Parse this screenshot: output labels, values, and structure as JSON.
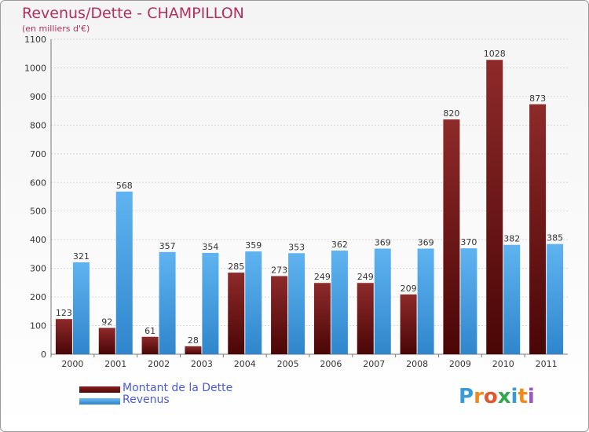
{
  "title": "Revenus/Dette - CHAMPILLON",
  "subtitle": "(en milliers d'€)",
  "logo_text": "Proxiti",
  "colors": {
    "dette": "#6e1414",
    "revenus": "#4aa3e6",
    "title": "#b23060",
    "legend_text": "#4a5ad8"
  },
  "chart_data": {
    "type": "bar",
    "title": "Revenus/Dette - CHAMPILLON",
    "subtitle": "(en milliers d'€)",
    "xlabel": "",
    "ylabel": "",
    "ylim": [
      0,
      1100
    ],
    "yticks": [
      0,
      100,
      200,
      300,
      400,
      500,
      600,
      700,
      800,
      900,
      1000,
      1100
    ],
    "grid": true,
    "legend_position": "bottom-left",
    "categories": [
      "2000",
      "2001",
      "2002",
      "2003",
      "2004",
      "2005",
      "2006",
      "2007",
      "2008",
      "2009",
      "2010",
      "2011"
    ],
    "series": [
      {
        "name": "Montant de la Dette",
        "color": "#6e1414",
        "values": [
          123,
          92,
          61,
          28,
          285,
          273,
          249,
          249,
          209,
          820,
          1028,
          873
        ]
      },
      {
        "name": "Revenus",
        "color": "#4aa3e6",
        "values": [
          321,
          568,
          357,
          354,
          359,
          353,
          362,
          369,
          369,
          370,
          382,
          385
        ]
      }
    ]
  }
}
